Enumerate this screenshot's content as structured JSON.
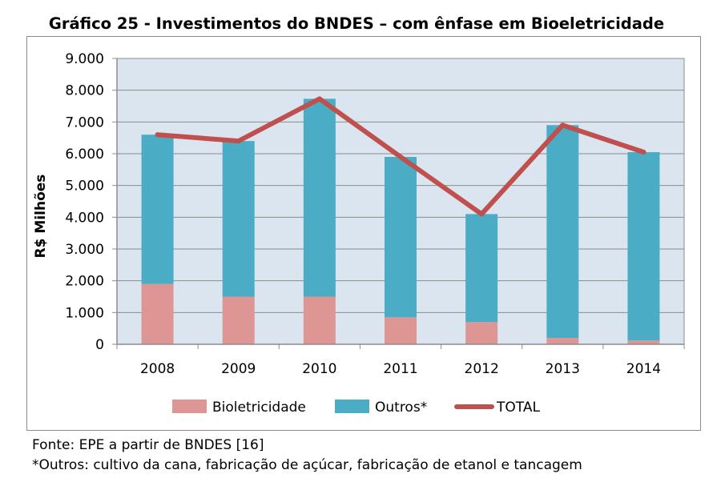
{
  "title": "Gráfico 25 - Investimentos do BNDES – com ênfase em Bioeletricidade",
  "footnotes": {
    "source": "Fonte: EPE a partir de BNDES [16]",
    "note": "*Outros: cultivo da cana, fabricação de açúcar, fabricação de etanol e tancagem"
  },
  "chart_data": {
    "type": "bar",
    "stacked": true,
    "title": "Gráfico 25 - Investimentos do BNDES – com ênfase em Bioeletricidade",
    "xlabel": "",
    "ylabel": "R$ Milhões",
    "ylim": [
      0,
      9000
    ],
    "y_ticks": [
      0,
      1000,
      2000,
      3000,
      4000,
      5000,
      6000,
      7000,
      8000,
      9000
    ],
    "y_tick_labels": [
      "0",
      "1.000",
      "2.000",
      "3.000",
      "4.000",
      "5.000",
      "6.000",
      "7.000",
      "8.000",
      "9.000"
    ],
    "categories": [
      "2008",
      "2009",
      "2010",
      "2011",
      "2012",
      "2013",
      "2014"
    ],
    "series": [
      {
        "name": "Bioletricidade",
        "kind": "bar",
        "color": "#dd9694",
        "values": [
          1900,
          1500,
          1500,
          850,
          700,
          200,
          120
        ]
      },
      {
        "name": "Outros*",
        "kind": "bar",
        "color": "#4bacc6",
        "values": [
          4700,
          4900,
          6230,
          5050,
          3400,
          6700,
          5930
        ]
      },
      {
        "name": "TOTAL",
        "kind": "line",
        "color": "#c0504d",
        "values": [
          6600,
          6400,
          7730,
          5900,
          4100,
          6900,
          6050
        ]
      }
    ],
    "grid": true,
    "plot_background": "#dae5f0",
    "legend_position": "bottom"
  }
}
